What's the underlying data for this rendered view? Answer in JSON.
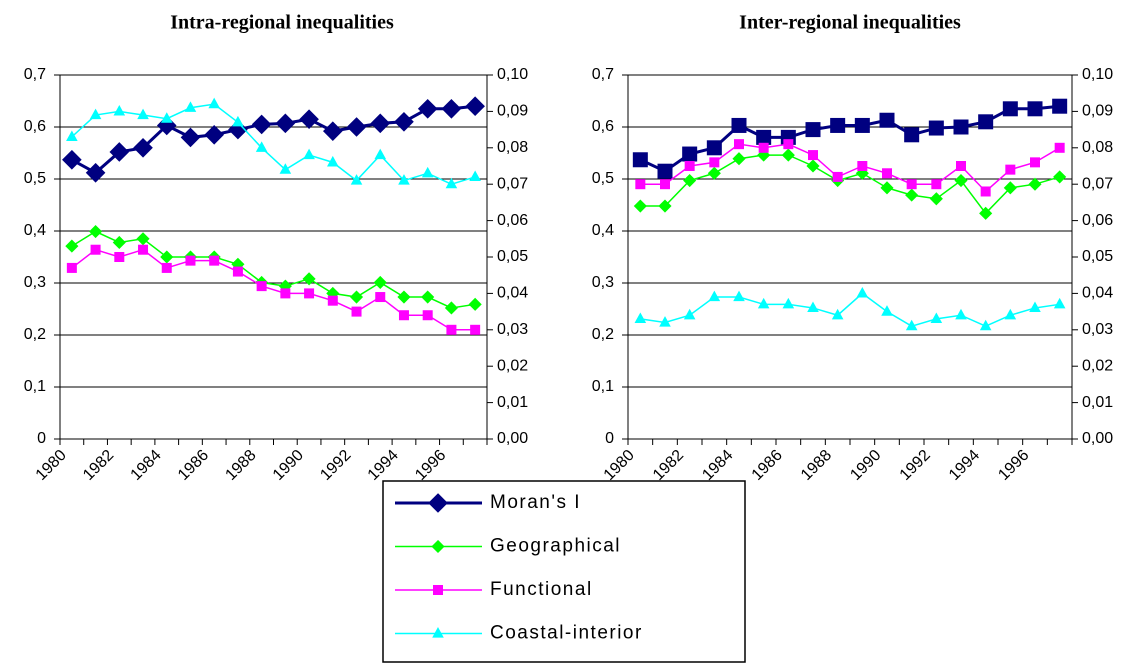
{
  "chart_data": [
    {
      "type": "line",
      "title": "Intra-regional inequalities",
      "categories": [
        "1980",
        null,
        "1982",
        null,
        "1984",
        null,
        "1986",
        null,
        "1988",
        null,
        "1990",
        null,
        "1992",
        null,
        "1994",
        null,
        "1996",
        null
      ],
      "ylim": [
        0,
        0.7
      ],
      "yticks": [
        0,
        {
          "value": 0.1,
          "label": "0,1"
        },
        {
          "value": 0.2,
          "label": "0,2"
        },
        {
          "value": 0.3,
          "label": "0,3"
        },
        {
          "value": 0.4,
          "label": "0,4"
        },
        {
          "value": 0.5,
          "label": "0,5"
        },
        {
          "value": 0.6,
          "label": "0,6"
        },
        {
          "value": 0.7,
          "label": "0,7"
        }
      ],
      "y2lim": [
        0,
        0.1
      ],
      "y2ticks": [
        {
          "value": 0,
          "label": "0,00"
        },
        {
          "value": 0.01,
          "label": "0,01"
        },
        {
          "value": 0.02,
          "label": "0,02"
        },
        {
          "value": 0.03,
          "label": "0,03"
        },
        {
          "value": 0.04,
          "label": "0,04"
        },
        {
          "value": 0.05,
          "label": "0,05"
        },
        {
          "value": 0.06,
          "label": "0,06"
        },
        {
          "value": 0.07,
          "label": "0,07"
        },
        {
          "value": 0.08,
          "label": "0,08"
        },
        {
          "value": 0.09,
          "label": "0,09"
        },
        {
          "value": 0.1,
          "label": "0,10"
        }
      ],
      "grid": true,
      "series": [
        {
          "name": "Moran's I",
          "color": "#000080",
          "marker": "diamond",
          "values": [
            0.537,
            0.512,
            0.552,
            0.56,
            0.603,
            0.58,
            0.585,
            0.595,
            0.605,
            0.607,
            0.615,
            0.592,
            0.6,
            0.607,
            0.61,
            0.635,
            0.635,
            0.64
          ]
        },
        {
          "name": "Geographical",
          "color": "#00ff00",
          "marker": "diamond",
          "axis": "y2",
          "values": [
            0.053,
            0.057,
            0.054,
            0.055,
            0.05,
            0.05,
            0.05,
            0.048,
            0.043,
            0.042,
            0.044,
            0.04,
            0.039,
            0.043,
            0.039,
            0.039,
            0.036,
            0.037
          ]
        },
        {
          "name": "Functional",
          "color": "#ff00ff",
          "marker": "square",
          "axis": "y2",
          "values": [
            0.047,
            0.052,
            0.05,
            0.052,
            0.047,
            0.049,
            0.049,
            0.046,
            0.042,
            0.04,
            0.04,
            0.038,
            0.035,
            0.039,
            0.034,
            0.034,
            0.03,
            0.03
          ]
        },
        {
          "name": "Coastal-interior",
          "color": "#00ffff",
          "marker": "triangle",
          "axis": "y2",
          "values": [
            0.083,
            0.089,
            0.09,
            0.089,
            0.088,
            0.091,
            0.092,
            0.087,
            0.08,
            0.074,
            0.078,
            0.076,
            0.071,
            0.078,
            0.071,
            0.073,
            0.07,
            0.072
          ]
        }
      ]
    },
    {
      "type": "line",
      "title": "Inter-regional inequalities",
      "categories": [
        "1980",
        null,
        "1982",
        null,
        "1984",
        null,
        "1986",
        null,
        "1988",
        null,
        "1990",
        null,
        "1992",
        null,
        "1994",
        null,
        "1996",
        null
      ],
      "ylim": [
        0,
        0.7
      ],
      "yticks": [
        0,
        {
          "value": 0.1,
          "label": "0,1"
        },
        {
          "value": 0.2,
          "label": "0,2"
        },
        {
          "value": 0.3,
          "label": "0,3"
        },
        {
          "value": 0.4,
          "label": "0,4"
        },
        {
          "value": 0.5,
          "label": "0,5"
        },
        {
          "value": 0.6,
          "label": "0,6"
        },
        {
          "value": 0.7,
          "label": "0,7"
        }
      ],
      "y2lim": [
        0,
        0.1
      ],
      "y2ticks": [
        {
          "value": 0,
          "label": "0,00"
        },
        {
          "value": 0.01,
          "label": "0,01"
        },
        {
          "value": 0.02,
          "label": "0,02"
        },
        {
          "value": 0.03,
          "label": "0,03"
        },
        {
          "value": 0.04,
          "label": "0,04"
        },
        {
          "value": 0.05,
          "label": "0,05"
        },
        {
          "value": 0.06,
          "label": "0,06"
        },
        {
          "value": 0.07,
          "label": "0,07"
        },
        {
          "value": 0.08,
          "label": "0,08"
        },
        {
          "value": 0.09,
          "label": "0,09"
        },
        {
          "value": 0.1,
          "label": "0,10"
        }
      ],
      "grid": true,
      "series": [
        {
          "color": "#000080",
          "marker": "square",
          "values": [
            0.537,
            0.515,
            0.548,
            0.56,
            0.603,
            0.58,
            0.58,
            0.595,
            0.603,
            0.603,
            0.613,
            0.585,
            0.598,
            0.6,
            0.61,
            0.635,
            0.635,
            0.64
          ]
        },
        {
          "color": "#00ff00",
          "marker": "diamond",
          "axis": "y2",
          "values": [
            0.064,
            0.064,
            0.071,
            0.073,
            0.077,
            0.078,
            0.078,
            0.075,
            0.071,
            0.073,
            0.069,
            0.067,
            0.066,
            0.071,
            0.062,
            0.069,
            0.07,
            0.072
          ]
        },
        {
          "color": "#ff00ff",
          "marker": "square",
          "axis": "y2",
          "values": [
            0.07,
            0.07,
            0.075,
            0.076,
            0.081,
            0.08,
            0.081,
            0.078,
            0.072,
            0.075,
            0.073,
            0.07,
            0.07,
            0.075,
            0.068,
            0.074,
            0.076,
            0.08
          ]
        },
        {
          "color": "#00ffff",
          "marker": "triangle",
          "axis": "y2",
          "values": [
            0.033,
            0.032,
            0.034,
            0.039,
            0.039,
            0.037,
            0.037,
            0.036,
            0.034,
            0.04,
            0.035,
            0.031,
            0.033,
            0.034,
            0.031,
            0.034,
            0.036,
            0.037
          ]
        }
      ]
    }
  ]
}
